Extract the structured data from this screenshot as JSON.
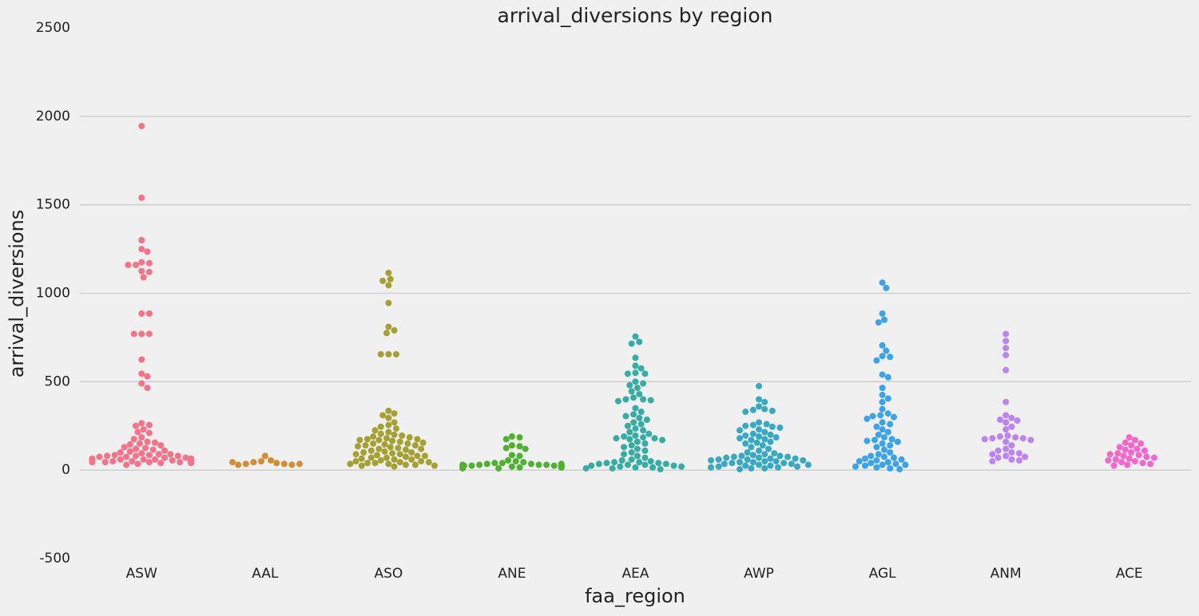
{
  "chart_data": {
    "type": "swarm",
    "title": "arrival_diversions by region",
    "x_label": "faa_region",
    "y_label": "arrival_diversions",
    "categories": [
      "ASW",
      "AAL",
      "ASO",
      "ANE",
      "AEA",
      "AWP",
      "AGL",
      "ANM",
      "ACE"
    ],
    "colors": [
      "#f77189",
      "#d58c32",
      "#a4a031",
      "#50b131",
      "#36ada4",
      "#38a9c5",
      "#3ba3ec",
      "#bb83f4",
      "#f565cc"
    ],
    "values": [
      [
        1945,
        1540,
        1300,
        1250,
        1235,
        1175,
        1170,
        1160,
        1160,
        1125,
        1120,
        1090,
        885,
        885,
        770,
        770,
        770,
        625,
        545,
        530,
        490,
        465,
        265,
        255,
        250,
        230,
        215,
        210,
        185,
        175,
        160,
        155,
        150,
        145,
        140,
        130,
        125,
        120,
        115,
        110,
        105,
        100,
        95,
        90,
        90,
        85,
        85,
        80,
        80,
        80,
        75,
        75,
        70,
        70,
        65,
        65,
        60,
        60,
        60,
        55,
        55,
        55,
        50,
        50,
        50,
        50,
        45,
        45,
        45,
        45,
        40,
        40,
        35,
        30
      ],
      [
        80,
        55,
        50,
        45,
        40,
        35,
        35,
        30,
        30,
        35,
        45
      ],
      [
        1115,
        1080,
        1070,
        1045,
        945,
        810,
        790,
        775,
        655,
        655,
        655,
        335,
        320,
        310,
        295,
        270,
        255,
        245,
        235,
        225,
        215,
        205,
        200,
        195,
        190,
        185,
        180,
        175,
        175,
        170,
        170,
        165,
        160,
        155,
        150,
        150,
        145,
        140,
        140,
        135,
        130,
        125,
        120,
        120,
        115,
        110,
        105,
        100,
        100,
        95,
        90,
        90,
        85,
        80,
        80,
        75,
        70,
        70,
        65,
        60,
        60,
        55,
        50,
        50,
        45,
        45,
        40,
        40,
        35,
        35,
        30,
        30,
        25,
        25,
        20
      ],
      [
        190,
        185,
        175,
        140,
        135,
        125,
        120,
        85,
        80,
        55,
        50,
        45,
        40,
        40,
        35,
        35,
        30,
        30,
        30,
        25,
        25,
        25,
        25,
        20,
        20,
        20,
        20,
        15,
        15,
        15,
        10,
        10,
        35,
        30
      ],
      [
        755,
        725,
        715,
        635,
        590,
        575,
        550,
        545,
        545,
        500,
        490,
        480,
        465,
        445,
        430,
        410,
        400,
        400,
        395,
        390,
        350,
        330,
        315,
        305,
        295,
        285,
        270,
        260,
        250,
        235,
        225,
        215,
        205,
        195,
        190,
        185,
        180,
        180,
        175,
        170,
        160,
        150,
        140,
        130,
        120,
        110,
        100,
        90,
        80,
        70,
        60,
        55,
        50,
        45,
        45,
        40,
        40,
        35,
        35,
        30,
        30,
        25,
        25,
        20,
        20,
        15,
        15,
        10,
        10,
        5
      ],
      [
        475,
        400,
        385,
        360,
        345,
        340,
        335,
        330,
        270,
        260,
        255,
        250,
        245,
        240,
        230,
        225,
        215,
        205,
        200,
        195,
        190,
        185,
        180,
        175,
        170,
        160,
        155,
        150,
        140,
        130,
        120,
        110,
        100,
        95,
        90,
        85,
        80,
        80,
        75,
        75,
        70,
        70,
        65,
        65,
        60,
        60,
        55,
        55,
        50,
        50,
        45,
        45,
        40,
        40,
        35,
        35,
        30,
        30,
        25,
        25,
        20,
        20,
        15,
        15,
        10,
        10,
        5
      ],
      [
        1060,
        1030,
        885,
        850,
        835,
        705,
        675,
        645,
        640,
        620,
        540,
        525,
        465,
        425,
        405,
        385,
        345,
        320,
        310,
        305,
        300,
        290,
        270,
        260,
        245,
        230,
        215,
        200,
        185,
        175,
        170,
        165,
        160,
        150,
        140,
        130,
        115,
        100,
        90,
        80,
        75,
        70,
        65,
        60,
        55,
        50,
        45,
        40,
        35,
        30,
        30,
        25,
        20,
        15,
        10,
        5
      ],
      [
        770,
        730,
        690,
        650,
        565,
        385,
        310,
        295,
        285,
        280,
        270,
        245,
        230,
        195,
        190,
        185,
        180,
        180,
        175,
        170,
        160,
        140,
        120,
        110,
        100,
        95,
        90,
        80,
        75,
        70,
        60,
        55,
        50
      ],
      [
        185,
        170,
        155,
        150,
        140,
        130,
        120,
        115,
        110,
        100,
        95,
        90,
        85,
        80,
        75,
        70,
        65,
        60,
        55,
        50,
        45,
        40,
        35,
        30,
        25
      ]
    ],
    "ylim": [
      -500,
      2500
    ],
    "yticks": [
      -500,
      0,
      500,
      1000,
      1500,
      2000,
      2500
    ],
    "grid": true
  }
}
